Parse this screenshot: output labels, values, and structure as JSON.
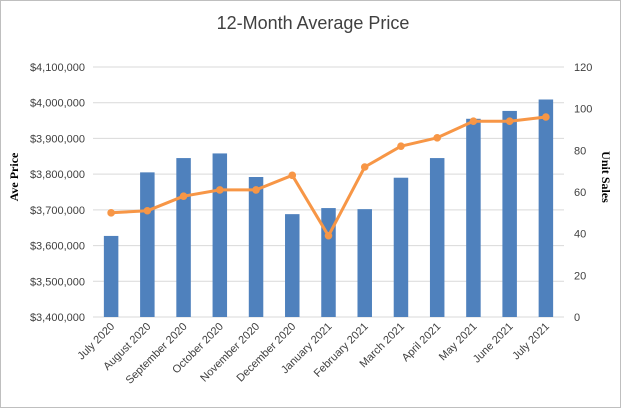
{
  "chart_data": {
    "type": "bar",
    "title": "12-Month Average Price",
    "xlabel": "",
    "ylabel": "Ave Price",
    "y2label": "Unit Sales",
    "categories": [
      "July 2020",
      "August 2020",
      "September 2020",
      "October 2020",
      "November 2020",
      "December 2020",
      "January 2021",
      "February 2021",
      "March 2021",
      "April 2021",
      "May 2021",
      "June 2021",
      "July 2021"
    ],
    "series": [
      {
        "type": "bar",
        "axis": "left",
        "color": "#4f81bd",
        "values": [
          3627000,
          3805000,
          3845000,
          3858000,
          3792000,
          3688000,
          3705000,
          3702000,
          3790000,
          3845000,
          3955000,
          3977000,
          4009000
        ]
      },
      {
        "type": "line",
        "axis": "right",
        "color": "#f79646",
        "values": [
          50,
          51,
          58,
          61,
          61,
          68,
          39,
          72,
          82,
          86,
          94,
          94,
          96
        ]
      }
    ],
    "ylim": [
      3400000,
      4100000
    ],
    "yticks": [
      3400000,
      3500000,
      3600000,
      3700000,
      3800000,
      3900000,
      4000000,
      4100000
    ],
    "ytick_labels": [
      "$3,400,000",
      "$3,500,000",
      "$3,600,000",
      "$3,700,000",
      "$3,800,000",
      "$3,900,000",
      "$4,000,000",
      "$4,100,000"
    ],
    "y2lim": [
      0,
      120
    ],
    "y2ticks": [
      0,
      20,
      40,
      60,
      80,
      100,
      120
    ],
    "y2tick_labels": [
      "0",
      "20",
      "40",
      "60",
      "80",
      "100",
      "120"
    ],
    "grid": true
  }
}
